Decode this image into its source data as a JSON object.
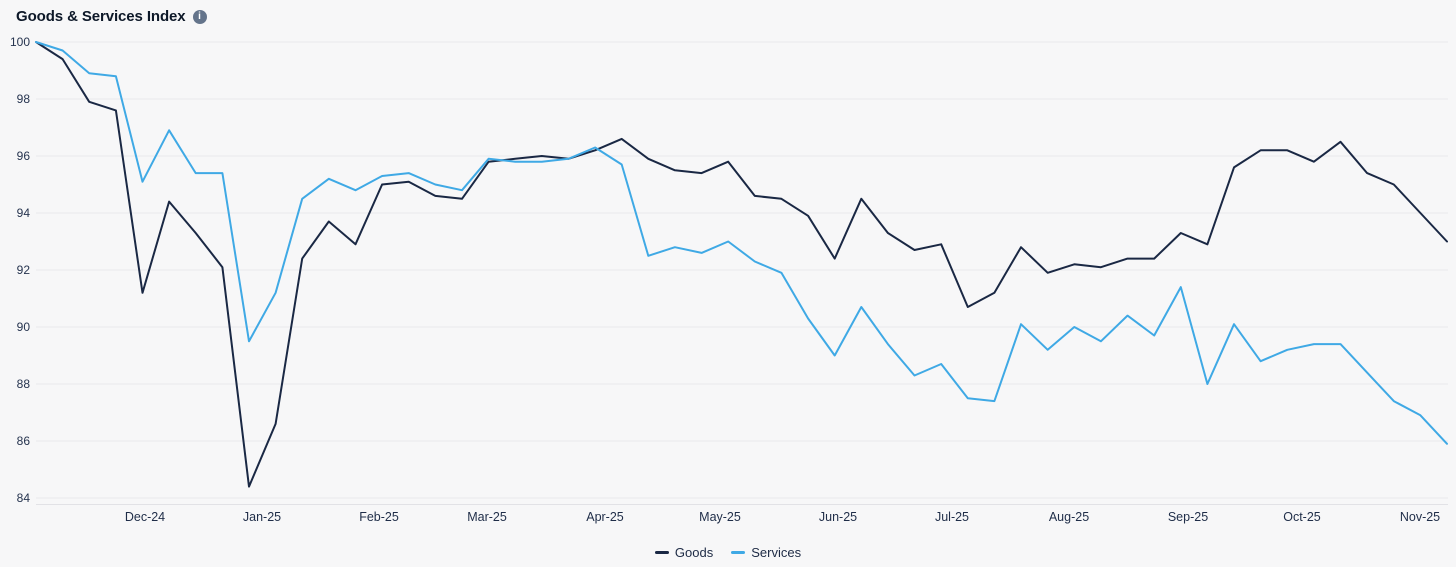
{
  "header": {
    "title": "Goods & Services Index",
    "info_icon_glyph": "i"
  },
  "chart_data": {
    "type": "line",
    "title": "Goods & Services Index",
    "x_axis_labels": [
      "Dec-24",
      "Jan-25",
      "Feb-25",
      "Mar-25",
      "Apr-25",
      "May-25",
      "Jun-25",
      "Jul-25",
      "Aug-25",
      "Sep-25",
      "Oct-25",
      "Nov-25"
    ],
    "y_ticks": [
      100,
      98,
      96,
      94,
      92,
      90,
      88,
      86,
      84
    ],
    "ylim": [
      84,
      100
    ],
    "grid": "horizontal",
    "legend_position": "bottom",
    "series": [
      {
        "name": "Goods",
        "color": "#1a2844",
        "values": [
          100,
          99.4,
          97.9,
          97.6,
          91.2,
          94.4,
          93.3,
          92.1,
          84.4,
          86.6,
          92.4,
          93.7,
          92.9,
          95.0,
          95.1,
          94.6,
          94.5,
          95.8,
          95.9,
          96.0,
          95.9,
          96.2,
          96.6,
          95.9,
          95.5,
          95.4,
          95.8,
          94.6,
          94.5,
          93.9,
          92.4,
          94.5,
          93.3,
          92.7,
          92.9,
          90.7,
          91.2,
          92.8,
          91.9,
          92.2,
          92.1,
          92.4,
          92.4,
          93.3,
          92.9,
          95.6,
          96.2,
          96.2,
          95.8,
          96.5,
          95.4,
          95.0,
          94.0,
          93.0
        ]
      },
      {
        "name": "Services",
        "color": "#3fa9e5",
        "values": [
          100,
          99.7,
          98.9,
          98.8,
          95.1,
          96.9,
          95.4,
          95.4,
          89.5,
          91.2,
          94.5,
          95.2,
          94.8,
          95.3,
          95.4,
          95.0,
          94.8,
          95.9,
          95.8,
          95.8,
          95.9,
          96.3,
          95.7,
          92.5,
          92.8,
          92.6,
          93.0,
          92.3,
          91.9,
          90.3,
          89.0,
          90.7,
          89.4,
          88.3,
          88.7,
          87.5,
          87.4,
          90.1,
          89.2,
          90.0,
          89.5,
          90.4,
          89.7,
          91.4,
          88.0,
          90.1,
          88.8,
          89.2,
          89.4,
          89.4,
          88.4,
          87.4,
          86.9,
          85.9
        ]
      }
    ]
  },
  "colors": {
    "background": "#f7f7f8",
    "gridline": "#e9e9ec",
    "axis_line": "#e2e2e6",
    "y_tick_label": "#26344f",
    "x_tick_label": "#1f2d48",
    "title": "#0d1828",
    "info_icon_bg": "#64748b"
  }
}
